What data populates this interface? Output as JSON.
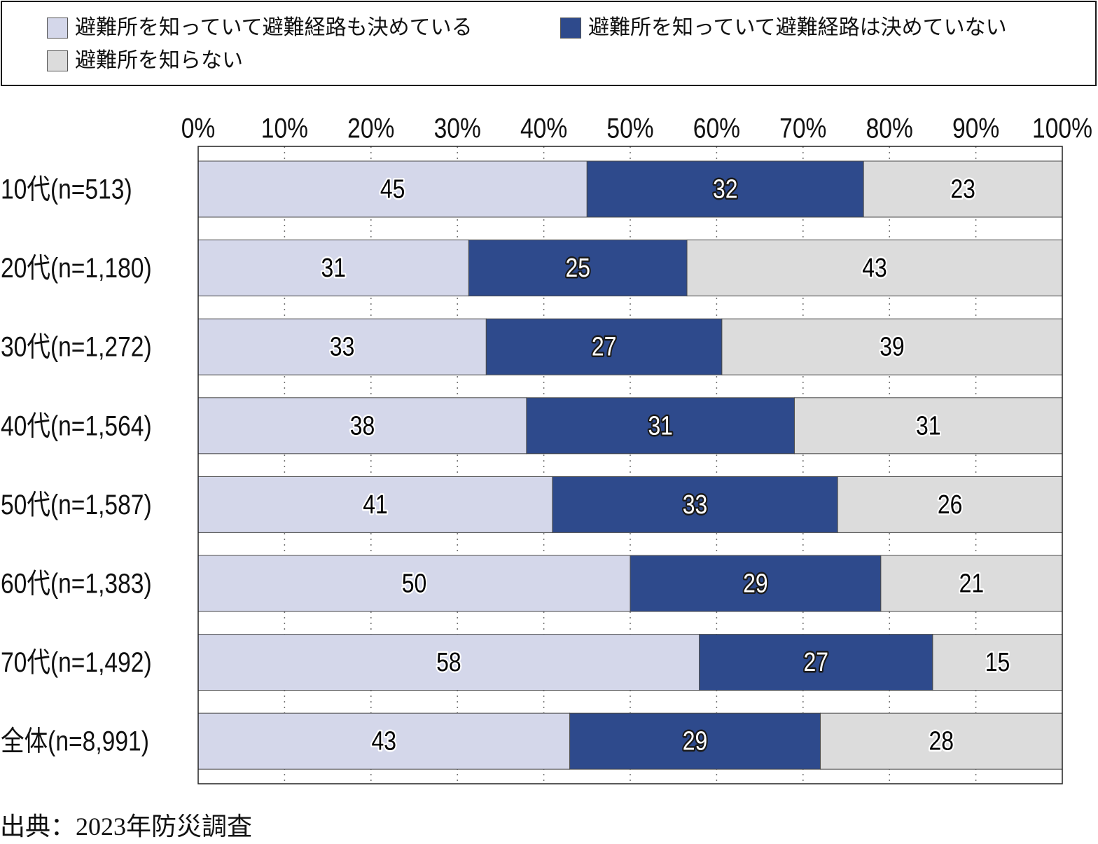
{
  "chart_data": {
    "type": "bar",
    "orientation": "horizontal",
    "stacked": "percent",
    "categories": [
      "10代(n=513)",
      "20代(n=1,180)",
      "30代(n=1,272)",
      "40代(n=1,564)",
      "50代(n=1,587)",
      "60代(n=1,383)",
      "70代(n=1,492)",
      "全体(n=8,991)"
    ],
    "series": [
      {
        "name": "避難所を知っていて避難経路も決めている",
        "values": [
          45,
          31,
          33,
          38,
          41,
          50,
          58,
          43
        ],
        "color": "#D4D7EA",
        "label_color": "#000000"
      },
      {
        "name": "避難所を知っていて避難経路は決めていない",
        "values": [
          32,
          25,
          27,
          31,
          33,
          29,
          27,
          29
        ],
        "color": "#2E4A8C",
        "label_color": "#FFFFFF"
      },
      {
        "name": "避難所を知らない",
        "values": [
          23,
          43,
          39,
          31,
          26,
          21,
          15,
          28
        ],
        "color": "#DCDCDC",
        "label_color": "#000000"
      }
    ],
    "x_ticks": [
      0,
      10,
      20,
      30,
      40,
      50,
      60,
      70,
      80,
      90,
      100
    ],
    "x_tick_labels": [
      "0%",
      "10%",
      "20%",
      "30%",
      "40%",
      "50%",
      "60%",
      "70%",
      "80%",
      "90%",
      "100%"
    ],
    "xlim": [
      0,
      100
    ],
    "grid": true,
    "legend_position": "top",
    "data_labels": true
  },
  "source": "出典：2023年防災調査"
}
